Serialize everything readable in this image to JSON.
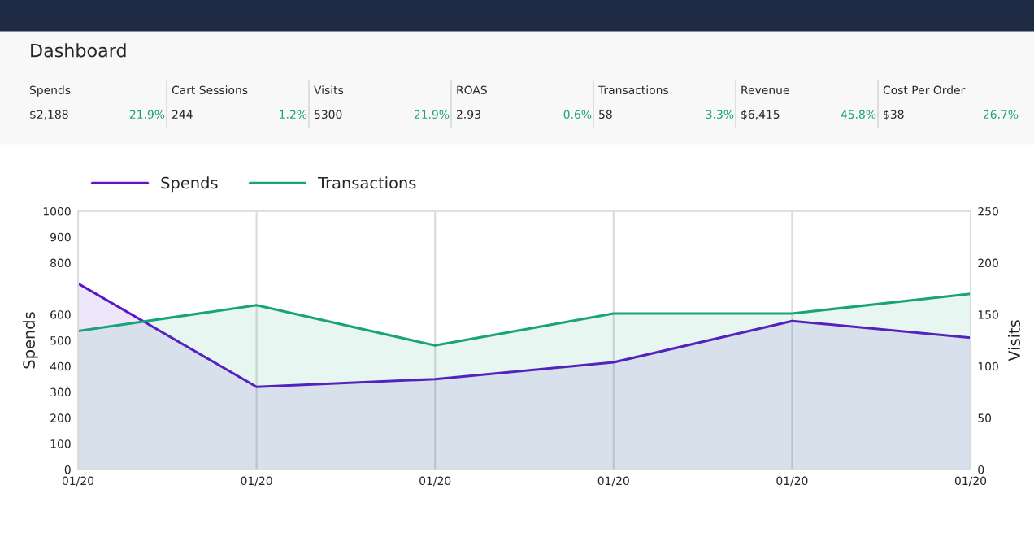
{
  "chart_data": [
    {
      "type": "other",
      "title": "Dashboard",
      "annotations": [
        "Spends",
        "$2,188",
        "21.9%",
        "Cart Sessions",
        "244",
        "1.2%",
        "Visits",
        "5300",
        "21.9%",
        "ROAS",
        "2.93",
        "0.6%",
        "Transactions",
        "58",
        "3.3%",
        "Revenue",
        "$6,415",
        "45.8%",
        "Cost Per Order",
        "$38",
        "26.7%"
      ]
    },
    {
      "type": "area",
      "categories": [
        "01/20",
        "01/20",
        "01/20",
        "01/20",
        "01/20",
        "01/20"
      ],
      "series": [
        {
          "name": "Spends",
          "color": "#5b14c8",
          "values": [
            720,
            320,
            350,
            415,
            575,
            510
          ]
        },
        {
          "name": "Transactions",
          "color": "#1aa37a",
          "axis": "y2",
          "values": [
            134,
            159,
            120,
            151,
            151,
            170
          ]
        }
      ],
      "ylabel": "Spends",
      "y2label": "Visits",
      "ylim": [
        0,
        1000
      ],
      "yticks": [
        0,
        100,
        200,
        300,
        400,
        500,
        600,
        800,
        900,
        1000
      ],
      "y2lim": [
        0,
        250
      ],
      "y2ticks": [
        0,
        50,
        100,
        150,
        200,
        250
      ],
      "grid": "x",
      "legend": "top left",
      "marker": "none",
      "line_style": "solid"
    }
  ]
}
